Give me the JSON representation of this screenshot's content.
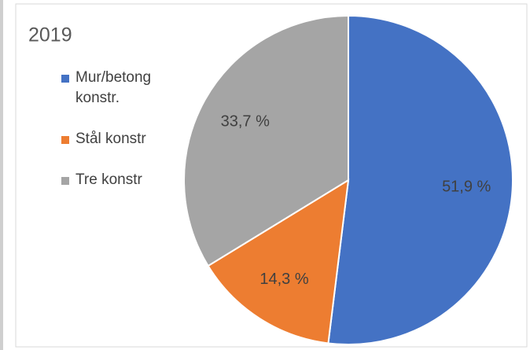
{
  "chart_data": {
    "type": "pie",
    "title": "2019",
    "categories": [
      "Mur/betong konstr.",
      "Stål konstr",
      "Tre konstr"
    ],
    "values": [
      51.9,
      14.3,
      33.7
    ],
    "value_labels": [
      "51,9 %",
      "14,3 %",
      "33,7 %"
    ],
    "colors": [
      "#4472c4",
      "#ed7d31",
      "#a5a5a5"
    ]
  }
}
